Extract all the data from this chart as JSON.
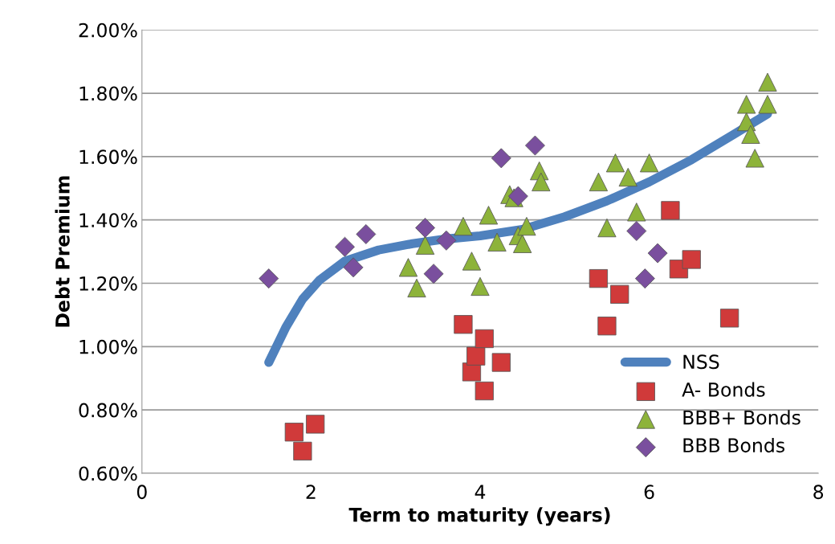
{
  "chart_data": {
    "type": "scatter",
    "xlabel": "Term to maturity (years)",
    "ylabel": "Debt Premium",
    "xlim": [
      0,
      8
    ],
    "xticks": [
      0,
      2,
      4,
      6,
      8
    ],
    "ylim": [
      0.6,
      2.0
    ],
    "yticks": [
      {
        "value": 0.6,
        "label": "0.60%"
      },
      {
        "value": 0.8,
        "label": "0.80%"
      },
      {
        "value": 1.0,
        "label": "1.00%"
      },
      {
        "value": 1.2,
        "label": "1.20%"
      },
      {
        "value": 1.4,
        "label": "1.40%"
      },
      {
        "value": 1.6,
        "label": "1.60%"
      },
      {
        "value": 1.8,
        "label": "1.80%"
      },
      {
        "value": 2.0,
        "label": "2.00%"
      }
    ],
    "grid": "y",
    "legend": "bottom right",
    "series": [
      {
        "name": "NSS",
        "type": "line",
        "color": "#4f81bd",
        "marker": "none",
        "x": [
          1.5,
          1.7,
          1.9,
          2.1,
          2.4,
          2.8,
          3.2,
          3.6,
          4.0,
          4.5,
          5.0,
          5.5,
          6.0,
          6.5,
          7.0,
          7.4
        ],
        "values": [
          0.95,
          1.06,
          1.15,
          1.21,
          1.27,
          1.305,
          1.325,
          1.34,
          1.35,
          1.37,
          1.41,
          1.46,
          1.52,
          1.59,
          1.67,
          1.735
        ]
      },
      {
        "name": "A- Bonds",
        "color": "#d03a3a",
        "marker": "square",
        "x": [
          1.8,
          2.05,
          1.9,
          3.8,
          3.9,
          3.95,
          4.05,
          4.05,
          4.25,
          5.4,
          5.5,
          5.65,
          6.25,
          6.35,
          6.5,
          6.95
        ],
        "values": [
          0.73,
          0.755,
          0.67,
          1.07,
          0.92,
          0.97,
          1.025,
          0.86,
          0.95,
          1.215,
          1.065,
          1.165,
          1.43,
          1.245,
          1.275,
          1.09
        ]
      },
      {
        "name": "BBB+ Bonds",
        "color": "#8db33a",
        "marker": "triangle",
        "x": [
          3.15,
          3.25,
          3.35,
          3.8,
          3.9,
          4.0,
          4.1,
          4.2,
          4.35,
          4.4,
          4.45,
          4.5,
          4.55,
          4.7,
          4.72,
          5.4,
          5.5,
          5.6,
          5.75,
          5.85,
          6.0,
          7.15,
          7.15,
          7.2,
          7.25,
          7.4,
          7.4
        ],
        "values": [
          1.25,
          1.185,
          1.32,
          1.38,
          1.27,
          1.19,
          1.415,
          1.33,
          1.48,
          1.47,
          1.35,
          1.325,
          1.38,
          1.555,
          1.52,
          1.52,
          1.375,
          1.58,
          1.535,
          1.425,
          1.58,
          1.765,
          1.71,
          1.67,
          1.595,
          1.835,
          1.765
        ]
      },
      {
        "name": "BBB Bonds",
        "color": "#7a4f9e",
        "marker": "diamond",
        "x": [
          1.5,
          2.4,
          2.5,
          2.65,
          3.35,
          3.45,
          3.6,
          4.25,
          4.45,
          4.65,
          5.85,
          5.95,
          6.1
        ],
        "values": [
          1.215,
          1.315,
          1.25,
          1.355,
          1.375,
          1.23,
          1.335,
          1.595,
          1.475,
          1.635,
          1.365,
          1.215,
          1.295
        ]
      }
    ]
  }
}
